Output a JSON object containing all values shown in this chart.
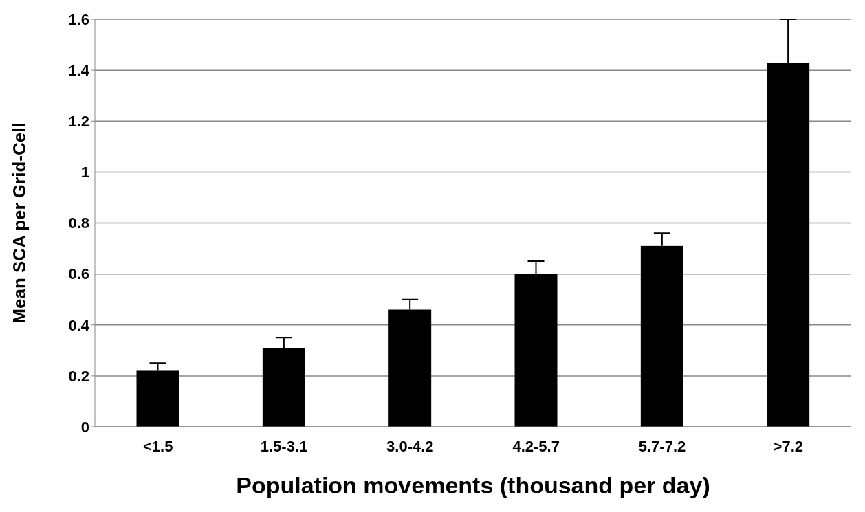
{
  "chart_data": {
    "type": "bar",
    "xlabel": "Population movements (thousand per day)",
    "ylabel": "Mean SCA per Grid-Cell",
    "categories": [
      "<1.5",
      "1.5-3.1",
      "3.0-4.2",
      "4.2-5.7",
      "5.7-7.2",
      ">7.2"
    ],
    "values": [
      0.22,
      0.31,
      0.46,
      0.6,
      0.71,
      1.43
    ],
    "errors": [
      [
        0.22,
        0.25
      ],
      [
        0.31,
        0.35
      ],
      [
        0.46,
        0.5
      ],
      [
        0.6,
        0.65
      ],
      [
        0.71,
        0.76
      ],
      [
        1.43,
        1.6
      ]
    ],
    "color": "#000000",
    "ylim": [
      0,
      1.6
    ],
    "yticks": [
      0,
      0.2,
      0.4,
      0.6,
      0.8,
      1,
      1.2,
      1.4,
      1.6
    ],
    "grid": "y"
  }
}
